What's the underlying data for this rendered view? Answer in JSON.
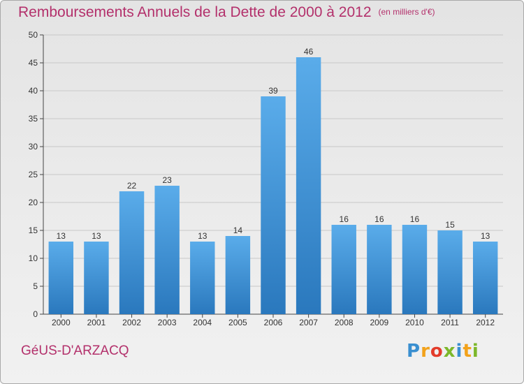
{
  "header": {
    "title": "Remboursements Annuels de la Dette de 2000 à 2012",
    "subtitle": "(en milliers d'€)"
  },
  "footer": {
    "commune": "GéUS-D'ARZACQ",
    "logo_letters": [
      "P",
      "r",
      "o",
      "x",
      "i",
      "t",
      "i"
    ],
    "logo_colors": [
      "#3a8fd0",
      "#f2a21b",
      "#e33c2b",
      "#7cb72a",
      "#3a8fd0",
      "#f2a21b",
      "#7cb72a"
    ]
  },
  "colors": {
    "title": "#b3306b",
    "bar_top": "#5aacea",
    "bar_bottom": "#2a78bd",
    "grid": "#c8c8c8"
  },
  "chart_data": {
    "type": "bar",
    "categories": [
      "2000",
      "2001",
      "2002",
      "2003",
      "2004",
      "2005",
      "2006",
      "2007",
      "2008",
      "2009",
      "2010",
      "2011",
      "2012"
    ],
    "values": [
      13,
      13,
      22,
      23,
      13,
      14,
      39,
      46,
      16,
      16,
      16,
      15,
      13
    ],
    "title": "Remboursements Annuels de la Dette de 2000 à 2012",
    "ylim": [
      0,
      50
    ],
    "yticks": [
      0,
      5,
      10,
      15,
      20,
      25,
      30,
      35,
      40,
      45,
      50
    ],
    "grid": true,
    "data_labels": true
  }
}
